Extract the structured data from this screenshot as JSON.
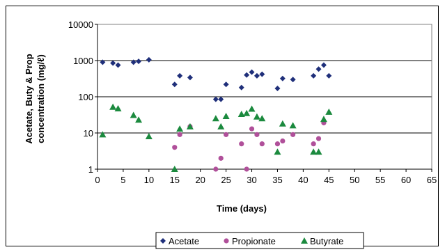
{
  "chart_data": {
    "type": "scatter",
    "title": "",
    "xlabel": "Time (days)",
    "ylabel_lines": [
      "Acetate, Buty & Prop",
      "concentration (mg/ℓ)"
    ],
    "x_ticks": [
      "0",
      "5",
      "10",
      "15",
      "20",
      "25",
      "30",
      "35",
      "40",
      "45",
      "50",
      "55",
      "60",
      "65"
    ],
    "y_ticks": [
      "1",
      "10",
      "100",
      "1000",
      "10000"
    ],
    "xlim": [
      0,
      65
    ],
    "ylim": [
      1,
      10000
    ],
    "y_scale": "log",
    "grid": "horizontal",
    "legend_position": "bottom",
    "series": [
      {
        "name": "Acetate",
        "marker": "diamond",
        "color": "#1F2F7A",
        "points": [
          [
            1,
            900
          ],
          [
            3,
            850
          ],
          [
            4,
            750
          ],
          [
            7,
            900
          ],
          [
            8,
            950
          ],
          [
            10,
            1050
          ],
          [
            15,
            220
          ],
          [
            16,
            380
          ],
          [
            18,
            340
          ],
          [
            23,
            85
          ],
          [
            24,
            85
          ],
          [
            25,
            220
          ],
          [
            28,
            180
          ],
          [
            29,
            400
          ],
          [
            30,
            480
          ],
          [
            31,
            380
          ],
          [
            32,
            420
          ],
          [
            35,
            170
          ],
          [
            36,
            320
          ],
          [
            38,
            300
          ],
          [
            42,
            380
          ],
          [
            43,
            580
          ],
          [
            44,
            750
          ],
          [
            45,
            380
          ]
        ]
      },
      {
        "name": "Propionate",
        "marker": "circle",
        "color": "#B0509A",
        "points": [
          [
            15,
            4
          ],
          [
            16,
            9
          ],
          [
            18,
            15
          ],
          [
            23,
            1
          ],
          [
            24,
            2
          ],
          [
            25,
            9
          ],
          [
            28,
            5
          ],
          [
            29,
            1
          ],
          [
            30,
            13
          ],
          [
            31,
            9
          ],
          [
            32,
            5
          ],
          [
            35,
            5
          ],
          [
            36,
            6
          ],
          [
            38,
            9
          ],
          [
            42,
            5
          ],
          [
            43,
            7
          ],
          [
            44,
            19
          ]
        ]
      },
      {
        "name": "Butyrate",
        "marker": "triangle",
        "color": "#1B8A3E",
        "points": [
          [
            1,
            9
          ],
          [
            3,
            52
          ],
          [
            4,
            47
          ],
          [
            7,
            31
          ],
          [
            8,
            23
          ],
          [
            10,
            8
          ],
          [
            15,
            1
          ],
          [
            16,
            13
          ],
          [
            18,
            15
          ],
          [
            23,
            25
          ],
          [
            24,
            15
          ],
          [
            25,
            29
          ],
          [
            28,
            33
          ],
          [
            29,
            35
          ],
          [
            30,
            46
          ],
          [
            31,
            28
          ],
          [
            32,
            25
          ],
          [
            35,
            3
          ],
          [
            36,
            18
          ],
          [
            38,
            16
          ],
          [
            42,
            3
          ],
          [
            43,
            3
          ],
          [
            44,
            24
          ],
          [
            45,
            38
          ]
        ]
      }
    ]
  }
}
